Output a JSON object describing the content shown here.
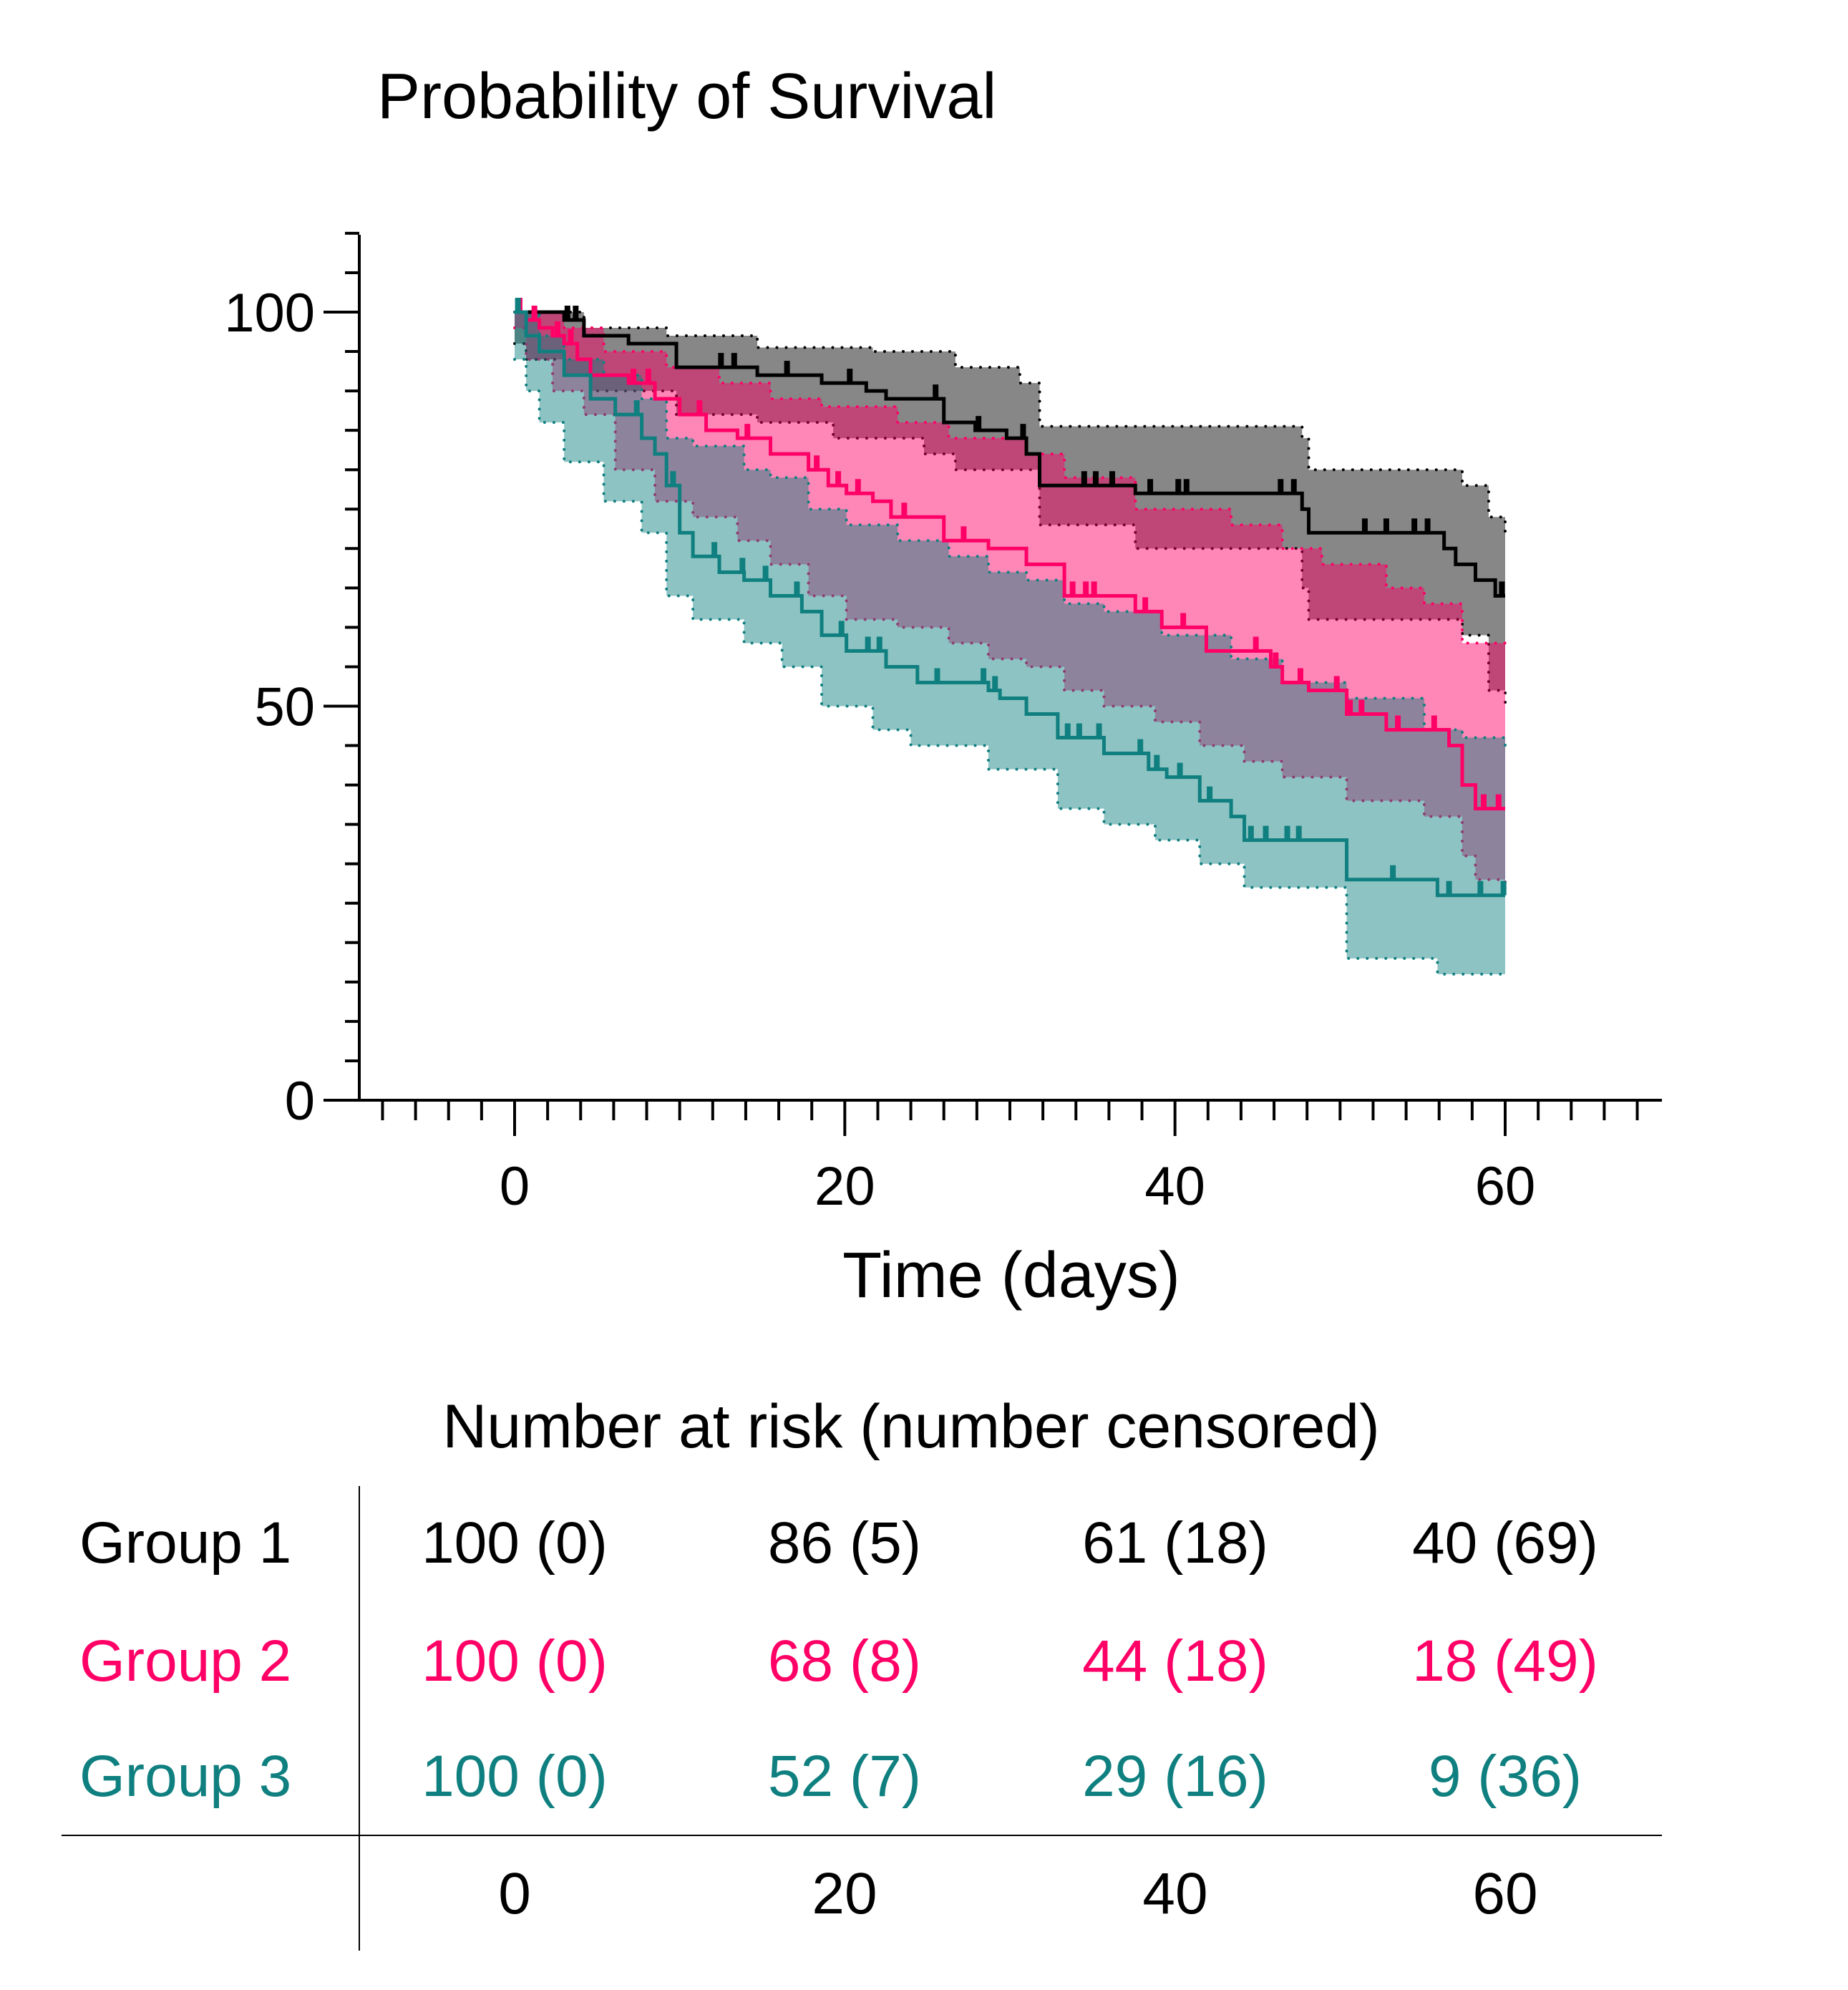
{
  "chart_data": {
    "type": "line",
    "subtype": "kaplan-meier step with confidence bands",
    "title": "Probability of Survival",
    "xlabel": "Time (days)",
    "ylabel": "",
    "xlim": [
      -10,
      70
    ],
    "ylim": [
      0,
      110
    ],
    "xticks": [
      0,
      20,
      40,
      60
    ],
    "yticks": [
      0,
      50,
      100
    ],
    "grid": false,
    "series": [
      {
        "name": "Group 1",
        "color": "#000000",
        "survival": [
          [
            0,
            100
          ],
          [
            3,
            99
          ],
          [
            4.2,
            97
          ],
          [
            6.9,
            96
          ],
          [
            9.8,
            93
          ],
          [
            14.7,
            92
          ],
          [
            18.6,
            91
          ],
          [
            21.3,
            90
          ],
          [
            22.5,
            89
          ],
          [
            26,
            86
          ],
          [
            27.9,
            85
          ],
          [
            29.8,
            84
          ],
          [
            31,
            82
          ],
          [
            31.8,
            78
          ],
          [
            37.6,
            77
          ],
          [
            47.7,
            75
          ],
          [
            48.1,
            72
          ],
          [
            56.3,
            70
          ],
          [
            57,
            68
          ],
          [
            58.2,
            66
          ],
          [
            59.4,
            64
          ],
          [
            60,
            64
          ]
        ],
        "ci_upper": [
          [
            0,
            100
          ],
          [
            4.2,
            98
          ],
          [
            9.2,
            97
          ],
          [
            14.7,
            95.5
          ],
          [
            21.7,
            95
          ],
          [
            26.7,
            93
          ],
          [
            30.6,
            91
          ],
          [
            31.8,
            85.5
          ],
          [
            47.7,
            84
          ],
          [
            48.1,
            80
          ],
          [
            57.4,
            78
          ],
          [
            59,
            74
          ],
          [
            60,
            72
          ]
        ],
        "ci_lower": [
          [
            0,
            96
          ],
          [
            0.7,
            94
          ],
          [
            3,
            92
          ],
          [
            4.6,
            90
          ],
          [
            9.8,
            87
          ],
          [
            14.7,
            86
          ],
          [
            19.3,
            84
          ],
          [
            24.8,
            82
          ],
          [
            26.7,
            80
          ],
          [
            31.8,
            73
          ],
          [
            37.6,
            70
          ],
          [
            47.7,
            65
          ],
          [
            48.1,
            61
          ],
          [
            57.4,
            59
          ],
          [
            59,
            52
          ],
          [
            60,
            50
          ]
        ],
        "censored": [
          3.2,
          3.7,
          12.5,
          13.3,
          16.5,
          20.3,
          25.5,
          28.1,
          30.8,
          34.5,
          35.2,
          36.2,
          38.5,
          40.2,
          40.7,
          46.4,
          47.2,
          51.5,
          52.8,
          54.5,
          55.3,
          59.8
        ]
      },
      {
        "name": "Group 2",
        "color": "#ff0066",
        "survival": [
          [
            0,
            100
          ],
          [
            0.7,
            99
          ],
          [
            1.5,
            98
          ],
          [
            2.3,
            97
          ],
          [
            3,
            96
          ],
          [
            3.8,
            94
          ],
          [
            4.6,
            92
          ],
          [
            6.9,
            91
          ],
          [
            8.5,
            89
          ],
          [
            10,
            87
          ],
          [
            11.6,
            85
          ],
          [
            13.5,
            84
          ],
          [
            15.5,
            82
          ],
          [
            17.8,
            80
          ],
          [
            19,
            78
          ],
          [
            20.1,
            77
          ],
          [
            21.7,
            76
          ],
          [
            22.8,
            74
          ],
          [
            26,
            71
          ],
          [
            28.7,
            70
          ],
          [
            31,
            68
          ],
          [
            33.3,
            64
          ],
          [
            37.6,
            62
          ],
          [
            39.2,
            60
          ],
          [
            41.9,
            57
          ],
          [
            45.8,
            55
          ],
          [
            46.5,
            53
          ],
          [
            48.1,
            52
          ],
          [
            50.4,
            49
          ],
          [
            52.8,
            47
          ],
          [
            56.6,
            45
          ],
          [
            57.4,
            40
          ],
          [
            58.2,
            37
          ],
          [
            60,
            37
          ]
        ],
        "ci_upper": [
          [
            0,
            100
          ],
          [
            3,
            98
          ],
          [
            5.4,
            95
          ],
          [
            9.2,
            93
          ],
          [
            12.4,
            91
          ],
          [
            15.5,
            89
          ],
          [
            18.6,
            88
          ],
          [
            23.2,
            86
          ],
          [
            26.3,
            84
          ],
          [
            31,
            82
          ],
          [
            33.3,
            79
          ],
          [
            37.6,
            75
          ],
          [
            43.4,
            73
          ],
          [
            46.5,
            70
          ],
          [
            48.9,
            68
          ],
          [
            52.8,
            65
          ],
          [
            55.1,
            63
          ],
          [
            57.4,
            58
          ],
          [
            60,
            57
          ]
        ],
        "ci_lower": [
          [
            0,
            98
          ],
          [
            0.7,
            94
          ],
          [
            2.3,
            90
          ],
          [
            4.2,
            87
          ],
          [
            6.1,
            80
          ],
          [
            8.5,
            76
          ],
          [
            10.8,
            74
          ],
          [
            13.5,
            71
          ],
          [
            15.5,
            68
          ],
          [
            17.8,
            64
          ],
          [
            20.1,
            61
          ],
          [
            23.2,
            60
          ],
          [
            26.3,
            58
          ],
          [
            28.7,
            56
          ],
          [
            31,
            55
          ],
          [
            33.3,
            52
          ],
          [
            35.7,
            50
          ],
          [
            38.8,
            48
          ],
          [
            41.5,
            45
          ],
          [
            44.2,
            43
          ],
          [
            46.5,
            41
          ],
          [
            50.4,
            38
          ],
          [
            55.1,
            36
          ],
          [
            57.4,
            31
          ],
          [
            58.2,
            28
          ],
          [
            60,
            27
          ]
        ],
        "censored": [
          0.3,
          1.2,
          2.6,
          3.4,
          7.2,
          8.1,
          11.2,
          14.1,
          18.3,
          19.6,
          20.8,
          23.6,
          27.2,
          33.8,
          34.6,
          35.1,
          38.2,
          40.5,
          44.9,
          46.1,
          47.6,
          49.8,
          50.6,
          51.3,
          53.5,
          55.7,
          58.7,
          59.6
        ]
      },
      {
        "name": "Group 3",
        "color": "#0f7f7f",
        "survival": [
          [
            0,
            100
          ],
          [
            0.7,
            97
          ],
          [
            1.5,
            95
          ],
          [
            3,
            92
          ],
          [
            4.6,
            89
          ],
          [
            6.1,
            87
          ],
          [
            7.7,
            84
          ],
          [
            8.5,
            82
          ],
          [
            9.2,
            78
          ],
          [
            10,
            72
          ],
          [
            10.8,
            69
          ],
          [
            12.4,
            67
          ],
          [
            13.9,
            66
          ],
          [
            15.5,
            64
          ],
          [
            17.4,
            62
          ],
          [
            18.6,
            59
          ],
          [
            20.1,
            57
          ],
          [
            22.5,
            55
          ],
          [
            24.4,
            53
          ],
          [
            28.7,
            52
          ],
          [
            29.4,
            51
          ],
          [
            31,
            49
          ],
          [
            32.9,
            46
          ],
          [
            35.7,
            44
          ],
          [
            38.4,
            42
          ],
          [
            39.5,
            41
          ],
          [
            41.5,
            38
          ],
          [
            43.4,
            36
          ],
          [
            44.2,
            33
          ],
          [
            50.4,
            28
          ],
          [
            55.9,
            26
          ],
          [
            60,
            26
          ]
        ],
        "ci_upper": [
          [
            0,
            100
          ],
          [
            1.5,
            97
          ],
          [
            3,
            94
          ],
          [
            5.4,
            92
          ],
          [
            7.7,
            89
          ],
          [
            9.2,
            84
          ],
          [
            10.8,
            83
          ],
          [
            13.9,
            80
          ],
          [
            15.5,
            79
          ],
          [
            17.8,
            75
          ],
          [
            20.1,
            73
          ],
          [
            23.2,
            71
          ],
          [
            26.3,
            69
          ],
          [
            28.7,
            67
          ],
          [
            31,
            66
          ],
          [
            33.3,
            63
          ],
          [
            35.7,
            62
          ],
          [
            39.2,
            59
          ],
          [
            43.4,
            56
          ],
          [
            46.5,
            53
          ],
          [
            50.4,
            51
          ],
          [
            55.1,
            47
          ],
          [
            57.4,
            46
          ],
          [
            60,
            44
          ]
        ],
        "ci_lower": [
          [
            0,
            94
          ],
          [
            0.7,
            90
          ],
          [
            1.5,
            86
          ],
          [
            3,
            81
          ],
          [
            5.4,
            76
          ],
          [
            7.7,
            72
          ],
          [
            9.2,
            64
          ],
          [
            10.8,
            61
          ],
          [
            13.9,
            58
          ],
          [
            16.2,
            55
          ],
          [
            18.6,
            50
          ],
          [
            21.7,
            47
          ],
          [
            24,
            45
          ],
          [
            28.7,
            42
          ],
          [
            32.9,
            37
          ],
          [
            35.7,
            35
          ],
          [
            38.8,
            33
          ],
          [
            41.5,
            30
          ],
          [
            44.2,
            27
          ],
          [
            50.4,
            18
          ],
          [
            55.9,
            16
          ],
          [
            60,
            16
          ]
        ],
        "censored": [
          0.2,
          7.4,
          9.6,
          12.1,
          13.8,
          15.2,
          17.1,
          19.8,
          21.4,
          22.1,
          25.6,
          28.4,
          29.1,
          33.5,
          34.2,
          35.4,
          37.9,
          38.9,
          40.3,
          42.1,
          44.6,
          45.5,
          46.8,
          47.5,
          53.2,
          56.6,
          58.5,
          59.9
        ]
      }
    ]
  },
  "risk_table": {
    "title": "Number at risk (number censored)",
    "times": [
      "0",
      "20",
      "40",
      "60"
    ],
    "rows": [
      {
        "label": "Group 1",
        "color": "#000000",
        "values": [
          "100 (0)",
          "86 (5)",
          "61 (18)",
          "40 (69)"
        ]
      },
      {
        "label": "Group 2",
        "color": "#ff0066",
        "values": [
          "100 (0)",
          "68 (8)",
          "44 (18)",
          "18 (49)"
        ]
      },
      {
        "label": "Group 3",
        "color": "#0f7f7f",
        "values": [
          "100 (0)",
          "52 (7)",
          "29 (16)",
          "9 (36)"
        ]
      }
    ]
  }
}
